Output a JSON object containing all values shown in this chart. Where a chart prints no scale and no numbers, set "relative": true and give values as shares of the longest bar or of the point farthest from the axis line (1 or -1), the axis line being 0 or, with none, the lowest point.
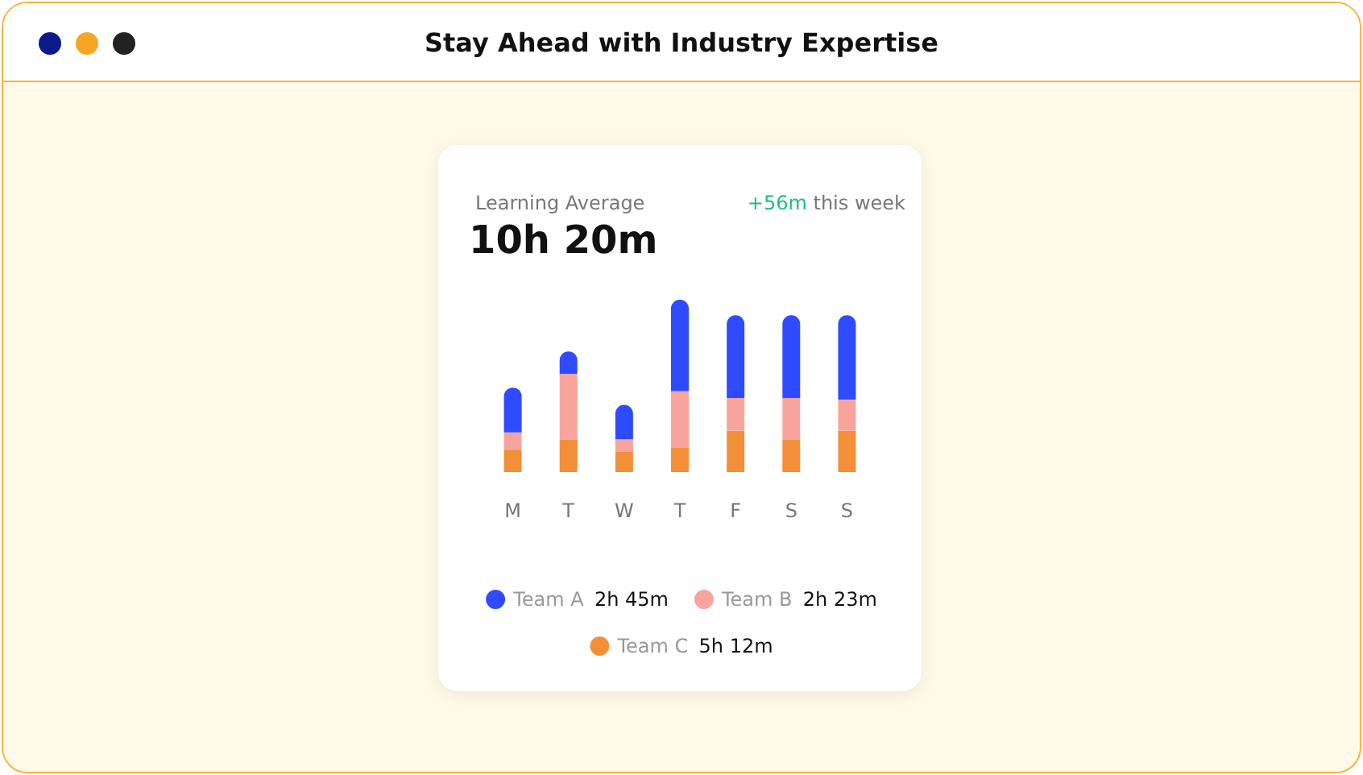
{
  "chart_data": {
    "type": "bar",
    "title": "Stay Ahead with Industry Expertise",
    "subtitle": "Learning Average",
    "annotations": [
      "10h 20m",
      "+56m",
      "this week",
      "5h 12m",
      "2h 23m",
      "2h 45m"
    ],
    "categories": [
      "M",
      "T",
      "W",
      "T",
      "F",
      "S",
      "S"
    ],
    "relative": true,
    "stacked": true,
    "legend": "bottom",
    "series": [
      {
        "name": "Team C",
        "color": "#f28f38",
        "values": [
          0.13,
          0.19,
          0.12,
          0.14,
          0.24,
          0.19,
          0.24
        ]
      },
      {
        "name": "Team B",
        "color": "#f7a59c",
        "values": [
          0.1,
          0.38,
          0.07,
          0.33,
          0.19,
          0.24,
          0.18
        ]
      },
      {
        "name": "Team A",
        "color": "#2f4bff",
        "values": [
          0.26,
          0.13,
          0.2,
          0.53,
          0.48,
          0.48,
          0.49
        ]
      }
    ]
  }
}
